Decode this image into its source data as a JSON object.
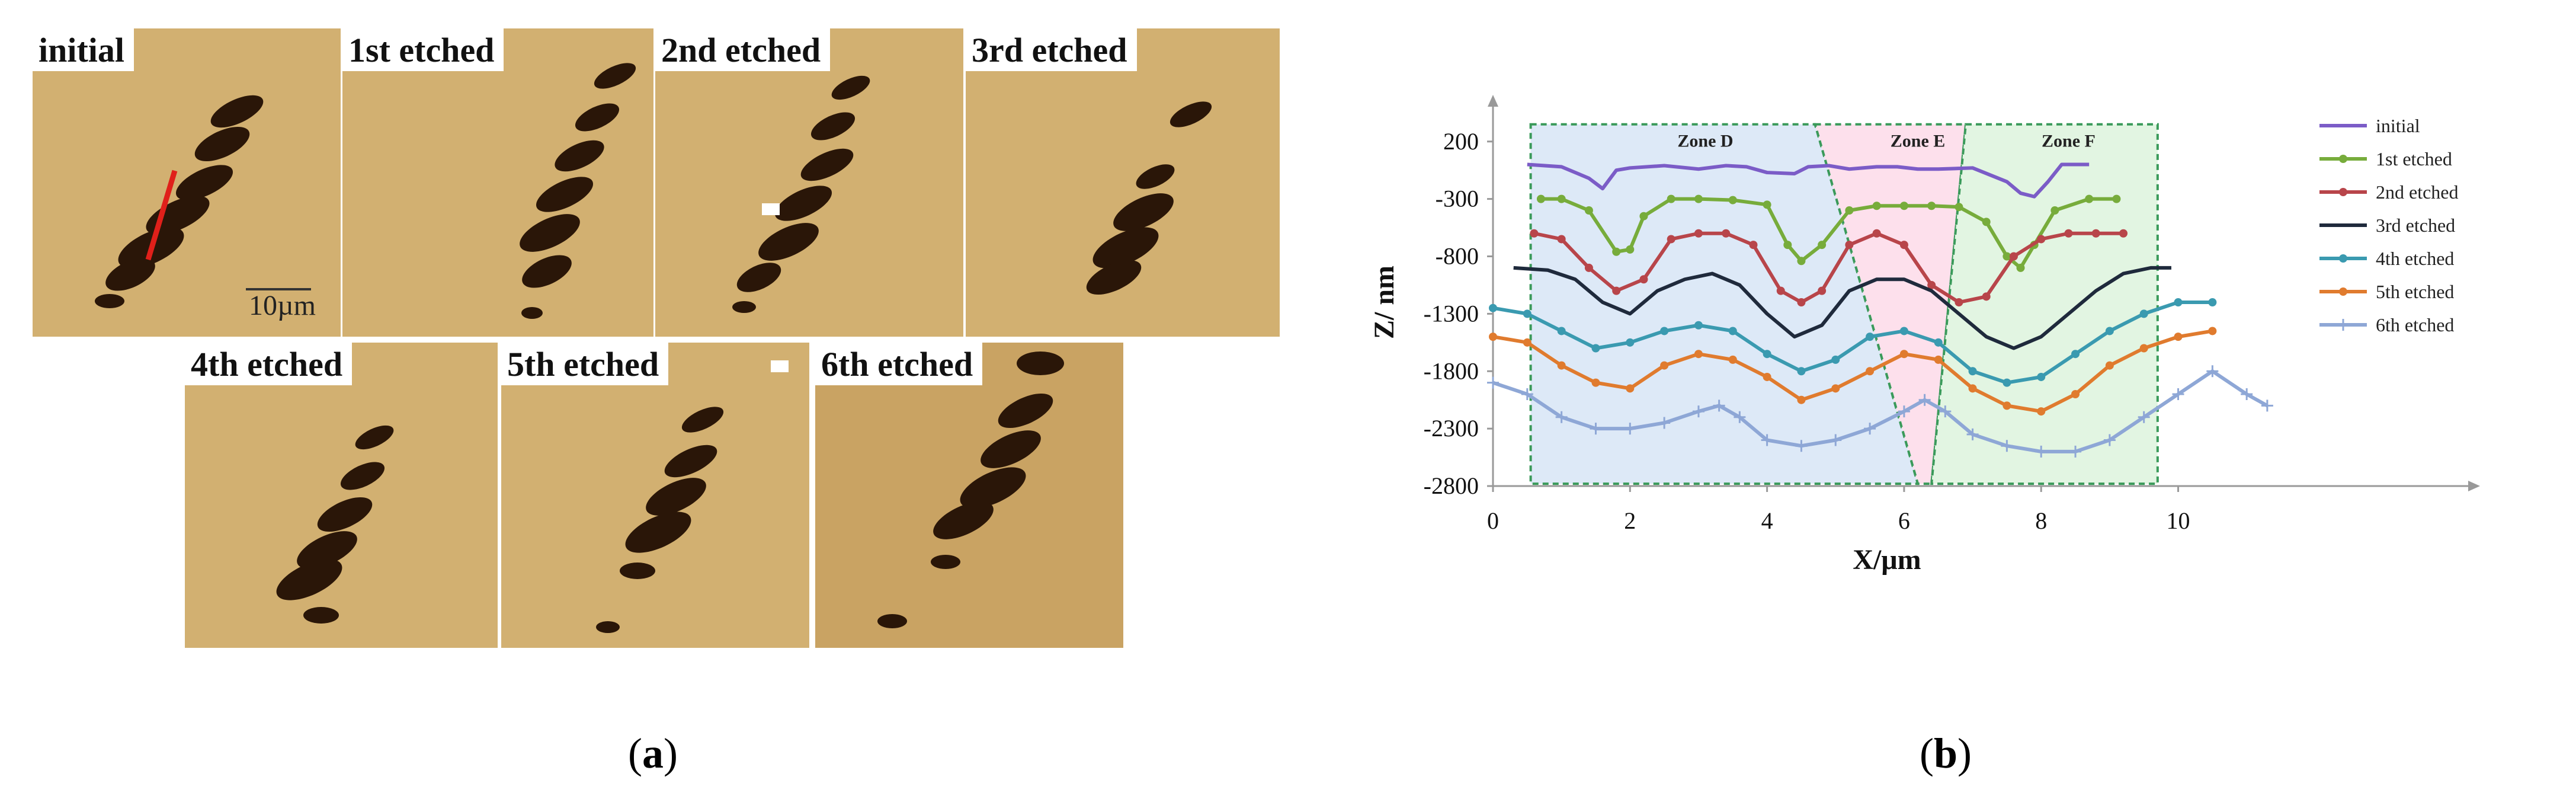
{
  "figure_a": {
    "caption_letter": "a",
    "scalebar": "10µm",
    "panels": [
      {
        "label": "initial"
      },
      {
        "label": "1st etched"
      },
      {
        "label": "2nd etched"
      },
      {
        "label": "3rd etched"
      },
      {
        "label": "4th etched"
      },
      {
        "label": "5th etched"
      },
      {
        "label": "6th etched"
      }
    ],
    "colors": {
      "afm_background": "#d2b071",
      "pit_dark": "#2a1608",
      "line_profile": "#e0201a"
    }
  },
  "figure_b": {
    "caption_letter": "b"
  },
  "chart_data": {
    "type": "line",
    "title": "",
    "xlabel": "X/μm",
    "ylabel": "Z/ nm",
    "xlim": [
      0,
      11.5
    ],
    "ylim": [
      -2800,
      400
    ],
    "xticks": [
      "0",
      "2",
      "4",
      "6",
      "8",
      "10"
    ],
    "yticks": [
      "200",
      "-300",
      "-800",
      "-1300",
      "-1800",
      "-2300",
      "-2800"
    ],
    "grid": false,
    "legend_position": "top-right",
    "zones": [
      {
        "label": "Zone D",
        "fill": "#dde9f7"
      },
      {
        "label": "Zone E",
        "fill": "#fde0ec"
      },
      {
        "label": "Zone F",
        "fill": "#e2f5e2"
      }
    ],
    "series": [
      {
        "name": "initial",
        "color": "#7b5cc7",
        "marker": "none",
        "x": [
          0.5,
          1.0,
          1.4,
          1.6,
          1.8,
          2.0,
          2.5,
          3.0,
          3.4,
          3.7,
          4.0,
          4.4,
          4.6,
          4.9,
          5.2,
          5.6,
          5.9,
          6.2,
          6.5,
          7.0,
          7.5,
          7.7,
          7.9,
          8.1,
          8.3,
          8.7
        ],
        "y": [
          0,
          -20,
          -120,
          -210,
          -50,
          -30,
          -10,
          -40,
          -10,
          -20,
          -70,
          -80,
          -20,
          -10,
          -40,
          -20,
          -20,
          -40,
          -40,
          -30,
          -150,
          -250,
          -280,
          -150,
          0,
          0
        ]
      },
      {
        "name": "1st etched",
        "color": "#77ac3b",
        "marker": "dot",
        "x": [
          0.7,
          1.0,
          1.4,
          1.8,
          2.0,
          2.2,
          2.6,
          3.0,
          3.5,
          4.0,
          4.3,
          4.5,
          4.8,
          5.2,
          5.6,
          6.0,
          6.4,
          6.8,
          7.2,
          7.5,
          7.7,
          7.9,
          8.2,
          8.7,
          9.1
        ],
        "y": [
          -300,
          -300,
          -400,
          -760,
          -740,
          -450,
          -300,
          -300,
          -310,
          -350,
          -700,
          -840,
          -700,
          -400,
          -360,
          -360,
          -360,
          -370,
          -500,
          -800,
          -900,
          -700,
          -400,
          -300,
          -300
        ]
      },
      {
        "name": "2nd etched",
        "color": "#b8454a",
        "marker": "dot",
        "x": [
          0.6,
          1.0,
          1.4,
          1.8,
          2.2,
          2.6,
          3.0,
          3.4,
          3.8,
          4.2,
          4.5,
          4.8,
          5.2,
          5.6,
          6.0,
          6.4,
          6.8,
          7.2,
          7.6,
          8.0,
          8.4,
          8.8,
          9.2
        ],
        "y": [
          -600,
          -650,
          -900,
          -1100,
          -1000,
          -650,
          -600,
          -600,
          -700,
          -1100,
          -1200,
          -1100,
          -700,
          -600,
          -700,
          -1050,
          -1200,
          -1150,
          -800,
          -650,
          -600,
          -600,
          -600
        ]
      },
      {
        "name": "3rd etched",
        "color": "#1f2a3c",
        "marker": "none",
        "x": [
          0.3,
          0.8,
          1.2,
          1.6,
          2.0,
          2.4,
          2.8,
          3.2,
          3.6,
          4.0,
          4.4,
          4.8,
          5.2,
          5.6,
          6.0,
          6.4,
          6.8,
          7.2,
          7.6,
          8.0,
          8.4,
          8.8,
          9.2,
          9.6,
          9.9
        ],
        "y": [
          -900,
          -920,
          -1000,
          -1200,
          -1300,
          -1100,
          -1000,
          -950,
          -1050,
          -1300,
          -1500,
          -1400,
          -1100,
          -1000,
          -1000,
          -1100,
          -1300,
          -1500,
          -1600,
          -1500,
          -1300,
          -1100,
          -950,
          -900,
          -900
        ]
      },
      {
        "name": "4th etched",
        "color": "#3a9ab0",
        "marker": "dot",
        "x": [
          0.0,
          0.5,
          1.0,
          1.5,
          2.0,
          2.5,
          3.0,
          3.5,
          4.0,
          4.5,
          5.0,
          5.5,
          6.0,
          6.5,
          7.0,
          7.5,
          8.0,
          8.5,
          9.0,
          9.5,
          10.0,
          10.5
        ],
        "y": [
          -1250,
          -1300,
          -1450,
          -1600,
          -1550,
          -1450,
          -1400,
          -1450,
          -1650,
          -1800,
          -1700,
          -1500,
          -1450,
          -1550,
          -1800,
          -1900,
          -1850,
          -1650,
          -1450,
          -1300,
          -1200,
          -1200
        ]
      },
      {
        "name": "5th etched",
        "color": "#e07b2e",
        "marker": "dot",
        "x": [
          0.0,
          0.5,
          1.0,
          1.5,
          2.0,
          2.5,
          3.0,
          3.5,
          4.0,
          4.5,
          5.0,
          5.5,
          6.0,
          6.5,
          7.0,
          7.5,
          8.0,
          8.5,
          9.0,
          9.5,
          10.0,
          10.5
        ],
        "y": [
          -1500,
          -1550,
          -1750,
          -1900,
          -1950,
          -1750,
          -1650,
          -1700,
          -1850,
          -2050,
          -1950,
          -1800,
          -1650,
          -1700,
          -1950,
          -2100,
          -2150,
          -2000,
          -1750,
          -1600,
          -1500,
          -1450
        ]
      },
      {
        "name": "6th etched",
        "color": "#8ea7d6",
        "marker": "plus",
        "x": [
          0.0,
          0.5,
          1.0,
          1.5,
          2.0,
          2.5,
          3.0,
          3.3,
          3.6,
          4.0,
          4.5,
          5.0,
          5.5,
          6.0,
          6.3,
          6.6,
          7.0,
          7.5,
          8.0,
          8.5,
          9.0,
          9.5,
          10.0,
          10.5,
          11.0,
          11.3
        ],
        "y": [
          -1900,
          -2000,
          -2200,
          -2300,
          -2300,
          -2250,
          -2150,
          -2100,
          -2200,
          -2400,
          -2450,
          -2400,
          -2300,
          -2150,
          -2050,
          -2150,
          -2350,
          -2450,
          -2500,
          -2500,
          -2400,
          -2200,
          -2000,
          -1800,
          -2000,
          -2100
        ]
      }
    ]
  }
}
